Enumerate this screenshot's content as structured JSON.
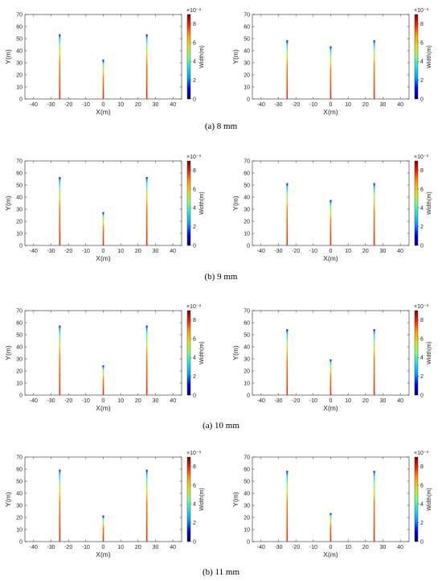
{
  "figure": {
    "captions": [
      "(a) 8 mm",
      "(b) 9 mm",
      "(a) 10 mm",
      "(b) 11 mm"
    ],
    "colorbar": {
      "label": "Width(m)",
      "multiplier": "×10⁻³",
      "ticks": [
        "0",
        "2",
        "4",
        "6",
        "8"
      ],
      "range": [
        0,
        9
      ],
      "colormap": [
        "#00007f",
        "#0000ff",
        "#00a0ff",
        "#20e0e0",
        "#80ff80",
        "#e0e020",
        "#ffa000",
        "#ff2000",
        "#800000"
      ]
    }
  },
  "chart_data": [
    {
      "type": "line",
      "row": 0,
      "col": 0,
      "xlabel": "X(m)",
      "ylabel": "Y(m)",
      "xlim": [
        -45,
        45
      ],
      "ylim": [
        0,
        70
      ],
      "xticks": [
        "-40",
        "-30",
        "-20",
        "-10",
        "0",
        "10",
        "20",
        "30",
        "40"
      ],
      "yticks": [
        "0",
        "10",
        "20",
        "30",
        "40",
        "50",
        "60",
        "70"
      ],
      "series": [
        {
          "x": -25,
          "length": 53
        },
        {
          "x": 0,
          "length": 32
        },
        {
          "x": 25,
          "length": 53
        }
      ]
    },
    {
      "type": "line",
      "row": 0,
      "col": 1,
      "xlabel": "X(m)",
      "ylabel": "Y(m)",
      "xlim": [
        -45,
        45
      ],
      "ylim": [
        0,
        70
      ],
      "xticks": [
        "-40",
        "-30",
        "-20",
        "-10",
        "0",
        "10",
        "20",
        "30",
        "40"
      ],
      "yticks": [
        "0",
        "10",
        "20",
        "30",
        "40",
        "50",
        "60",
        "70"
      ],
      "series": [
        {
          "x": -25,
          "length": 48
        },
        {
          "x": 0,
          "length": 43
        },
        {
          "x": 25,
          "length": 48
        }
      ]
    },
    {
      "type": "line",
      "row": 1,
      "col": 0,
      "xlabel": "X(m)",
      "ylabel": "Y(m)",
      "xlim": [
        -45,
        45
      ],
      "ylim": [
        0,
        70
      ],
      "xticks": [
        "-40",
        "-30",
        "-20",
        "-10",
        "0",
        "10",
        "20",
        "30",
        "40"
      ],
      "yticks": [
        "0",
        "10",
        "20",
        "30",
        "40",
        "50",
        "60",
        "70"
      ],
      "series": [
        {
          "x": -25,
          "length": 56
        },
        {
          "x": 0,
          "length": 27
        },
        {
          "x": 25,
          "length": 56
        }
      ]
    },
    {
      "type": "line",
      "row": 1,
      "col": 1,
      "xlabel": "X(m)",
      "ylabel": "Y(m)",
      "xlim": [
        -45,
        45
      ],
      "ylim": [
        0,
        70
      ],
      "xticks": [
        "-40",
        "-30",
        "-20",
        "-10",
        "0",
        "10",
        "20",
        "30",
        "40"
      ],
      "yticks": [
        "0",
        "10",
        "20",
        "30",
        "40",
        "50",
        "60",
        "70"
      ],
      "series": [
        {
          "x": -25,
          "length": 51
        },
        {
          "x": 0,
          "length": 37
        },
        {
          "x": 25,
          "length": 51
        }
      ]
    },
    {
      "type": "line",
      "row": 2,
      "col": 0,
      "xlabel": "X(m)",
      "ylabel": "Y(m)",
      "xlim": [
        -45,
        45
      ],
      "ylim": [
        0,
        70
      ],
      "xticks": [
        "-40",
        "-30",
        "-20",
        "-10",
        "0",
        "10",
        "20",
        "30",
        "40"
      ],
      "yticks": [
        "0",
        "10",
        "20",
        "30",
        "40",
        "50",
        "60",
        "70"
      ],
      "series": [
        {
          "x": -25,
          "length": 57
        },
        {
          "x": 0,
          "length": 24
        },
        {
          "x": 25,
          "length": 57
        }
      ]
    },
    {
      "type": "line",
      "row": 2,
      "col": 1,
      "xlabel": "X(m)",
      "ylabel": "Y(m)",
      "xlim": [
        -45,
        45
      ],
      "ylim": [
        0,
        70
      ],
      "xticks": [
        "-40",
        "-30",
        "-20",
        "-10",
        "0",
        "10",
        "20",
        "30",
        "40"
      ],
      "yticks": [
        "0",
        "10",
        "20",
        "30",
        "40",
        "50",
        "60",
        "70"
      ],
      "series": [
        {
          "x": -25,
          "length": 54
        },
        {
          "x": 0,
          "length": 29
        },
        {
          "x": 25,
          "length": 54
        }
      ]
    },
    {
      "type": "line",
      "row": 3,
      "col": 0,
      "xlabel": "X(m)",
      "ylabel": "Y(m)",
      "xlim": [
        -45,
        45
      ],
      "ylim": [
        0,
        70
      ],
      "xticks": [
        "-40",
        "-30",
        "-20",
        "-10",
        "0",
        "10",
        "20",
        "30",
        "40"
      ],
      "yticks": [
        "0",
        "10",
        "20",
        "30",
        "40",
        "50",
        "60",
        "70"
      ],
      "series": [
        {
          "x": -25,
          "length": 59
        },
        {
          "x": 0,
          "length": 21
        },
        {
          "x": 25,
          "length": 59
        }
      ]
    },
    {
      "type": "line",
      "row": 3,
      "col": 1,
      "xlabel": "X(m)",
      "ylabel": "Y(m)",
      "xlim": [
        -45,
        45
      ],
      "ylim": [
        0,
        70
      ],
      "xticks": [
        "-40",
        "-30",
        "-20",
        "-10",
        "0",
        "10",
        "20",
        "30",
        "40"
      ],
      "yticks": [
        "0",
        "10",
        "20",
        "30",
        "40",
        "50",
        "60",
        "70"
      ],
      "series": [
        {
          "x": -25,
          "length": 58
        },
        {
          "x": 0,
          "length": 23
        },
        {
          "x": 25,
          "length": 58
        }
      ]
    }
  ]
}
